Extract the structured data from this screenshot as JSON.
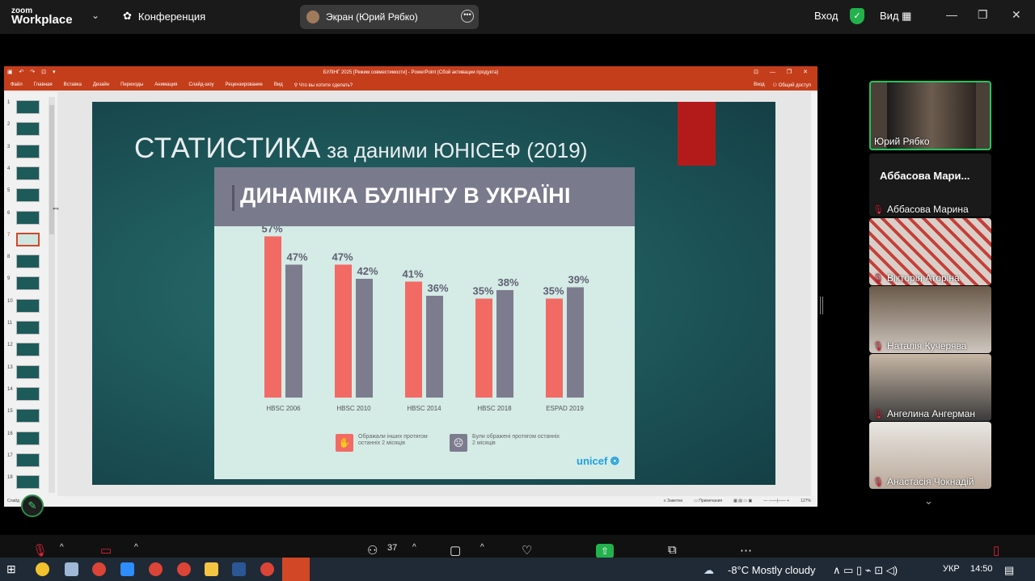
{
  "zoom": {
    "brand_line1": "zoom",
    "brand_line2": "Workplace",
    "conference_label": "Конференция",
    "share_label": "Экран (Юрий Рябко)",
    "login_label": "Вход",
    "view_label": "Вид"
  },
  "ppt": {
    "window_title": "БУЛІНГ 2025 [Режим совместимости] - PowerPoint (Сбой активации продукта)",
    "ribbon_tabs": [
      "Файл",
      "Главная",
      "Вставка",
      "Дизайн",
      "Переходы",
      "Анимация",
      "Слайд-шоу",
      "Рецензирование",
      "Вид"
    ],
    "tell_me": "Что вы хотите сделать?",
    "sign_in": "Вход",
    "share": "Общий доступ",
    "slide_numbers": [
      "1",
      "2",
      "3",
      "4",
      "5",
      "6",
      "7",
      "8",
      "9",
      "10",
      "11",
      "12",
      "13",
      "14",
      "15",
      "16",
      "17",
      "18"
    ],
    "active_slide": "7",
    "status_left": "Слайд",
    "status_notes": "Заметки",
    "status_comments": "Примечания",
    "zoom_level": "127%"
  },
  "slide": {
    "title_big": "СТАТИСТИКА",
    "title_small": " за даними ЮНІСЕФ (2019)",
    "card_title": "ДИНАМІКА БУЛІНГУ В УКРАЇНІ",
    "logo_text": "unicef"
  },
  "chart_data": {
    "type": "bar",
    "categories": [
      "HBSC 2006",
      "HBSC 2010",
      "HBSC 2014",
      "HBSC 2018",
      "ESPAD 2019"
    ],
    "series": [
      {
        "name": "Ображали інших протягом останніх 2 місяців",
        "values": [
          57,
          47,
          41,
          35,
          35
        ],
        "color": "#f26a64"
      },
      {
        "name": "Були ображені протягом останніх 2 місяців",
        "values": [
          47,
          42,
          36,
          38,
          39
        ],
        "color": "#7d7c8f"
      }
    ],
    "value_labels": [
      [
        "57%",
        "47%",
        "41%",
        "35%",
        "35%"
      ],
      [
        "47%",
        "42%",
        "36%",
        "38%",
        "39%"
      ]
    ],
    "ylim": [
      0,
      60
    ],
    "grid": false,
    "legend_position": "bottom"
  },
  "participants": [
    {
      "name": "Юрий Рябко",
      "video": true
    },
    {
      "name": "Аббасова Марина",
      "display_name": "Аббасова Мари...",
      "video": false
    },
    {
      "name": "Вікторія Аторіна",
      "video": true
    },
    {
      "name": "Наталія Кучерява",
      "video": true
    },
    {
      "name": "Ангелина Ангерман",
      "video": true
    },
    {
      "name": "Анастасія Чокнадій",
      "video": true
    }
  ],
  "toolbar": {
    "participants_count": "37"
  },
  "taskbar": {
    "weather": "-8°C  Mostly cloudy",
    "language": "УКР",
    "time": "14:50"
  }
}
